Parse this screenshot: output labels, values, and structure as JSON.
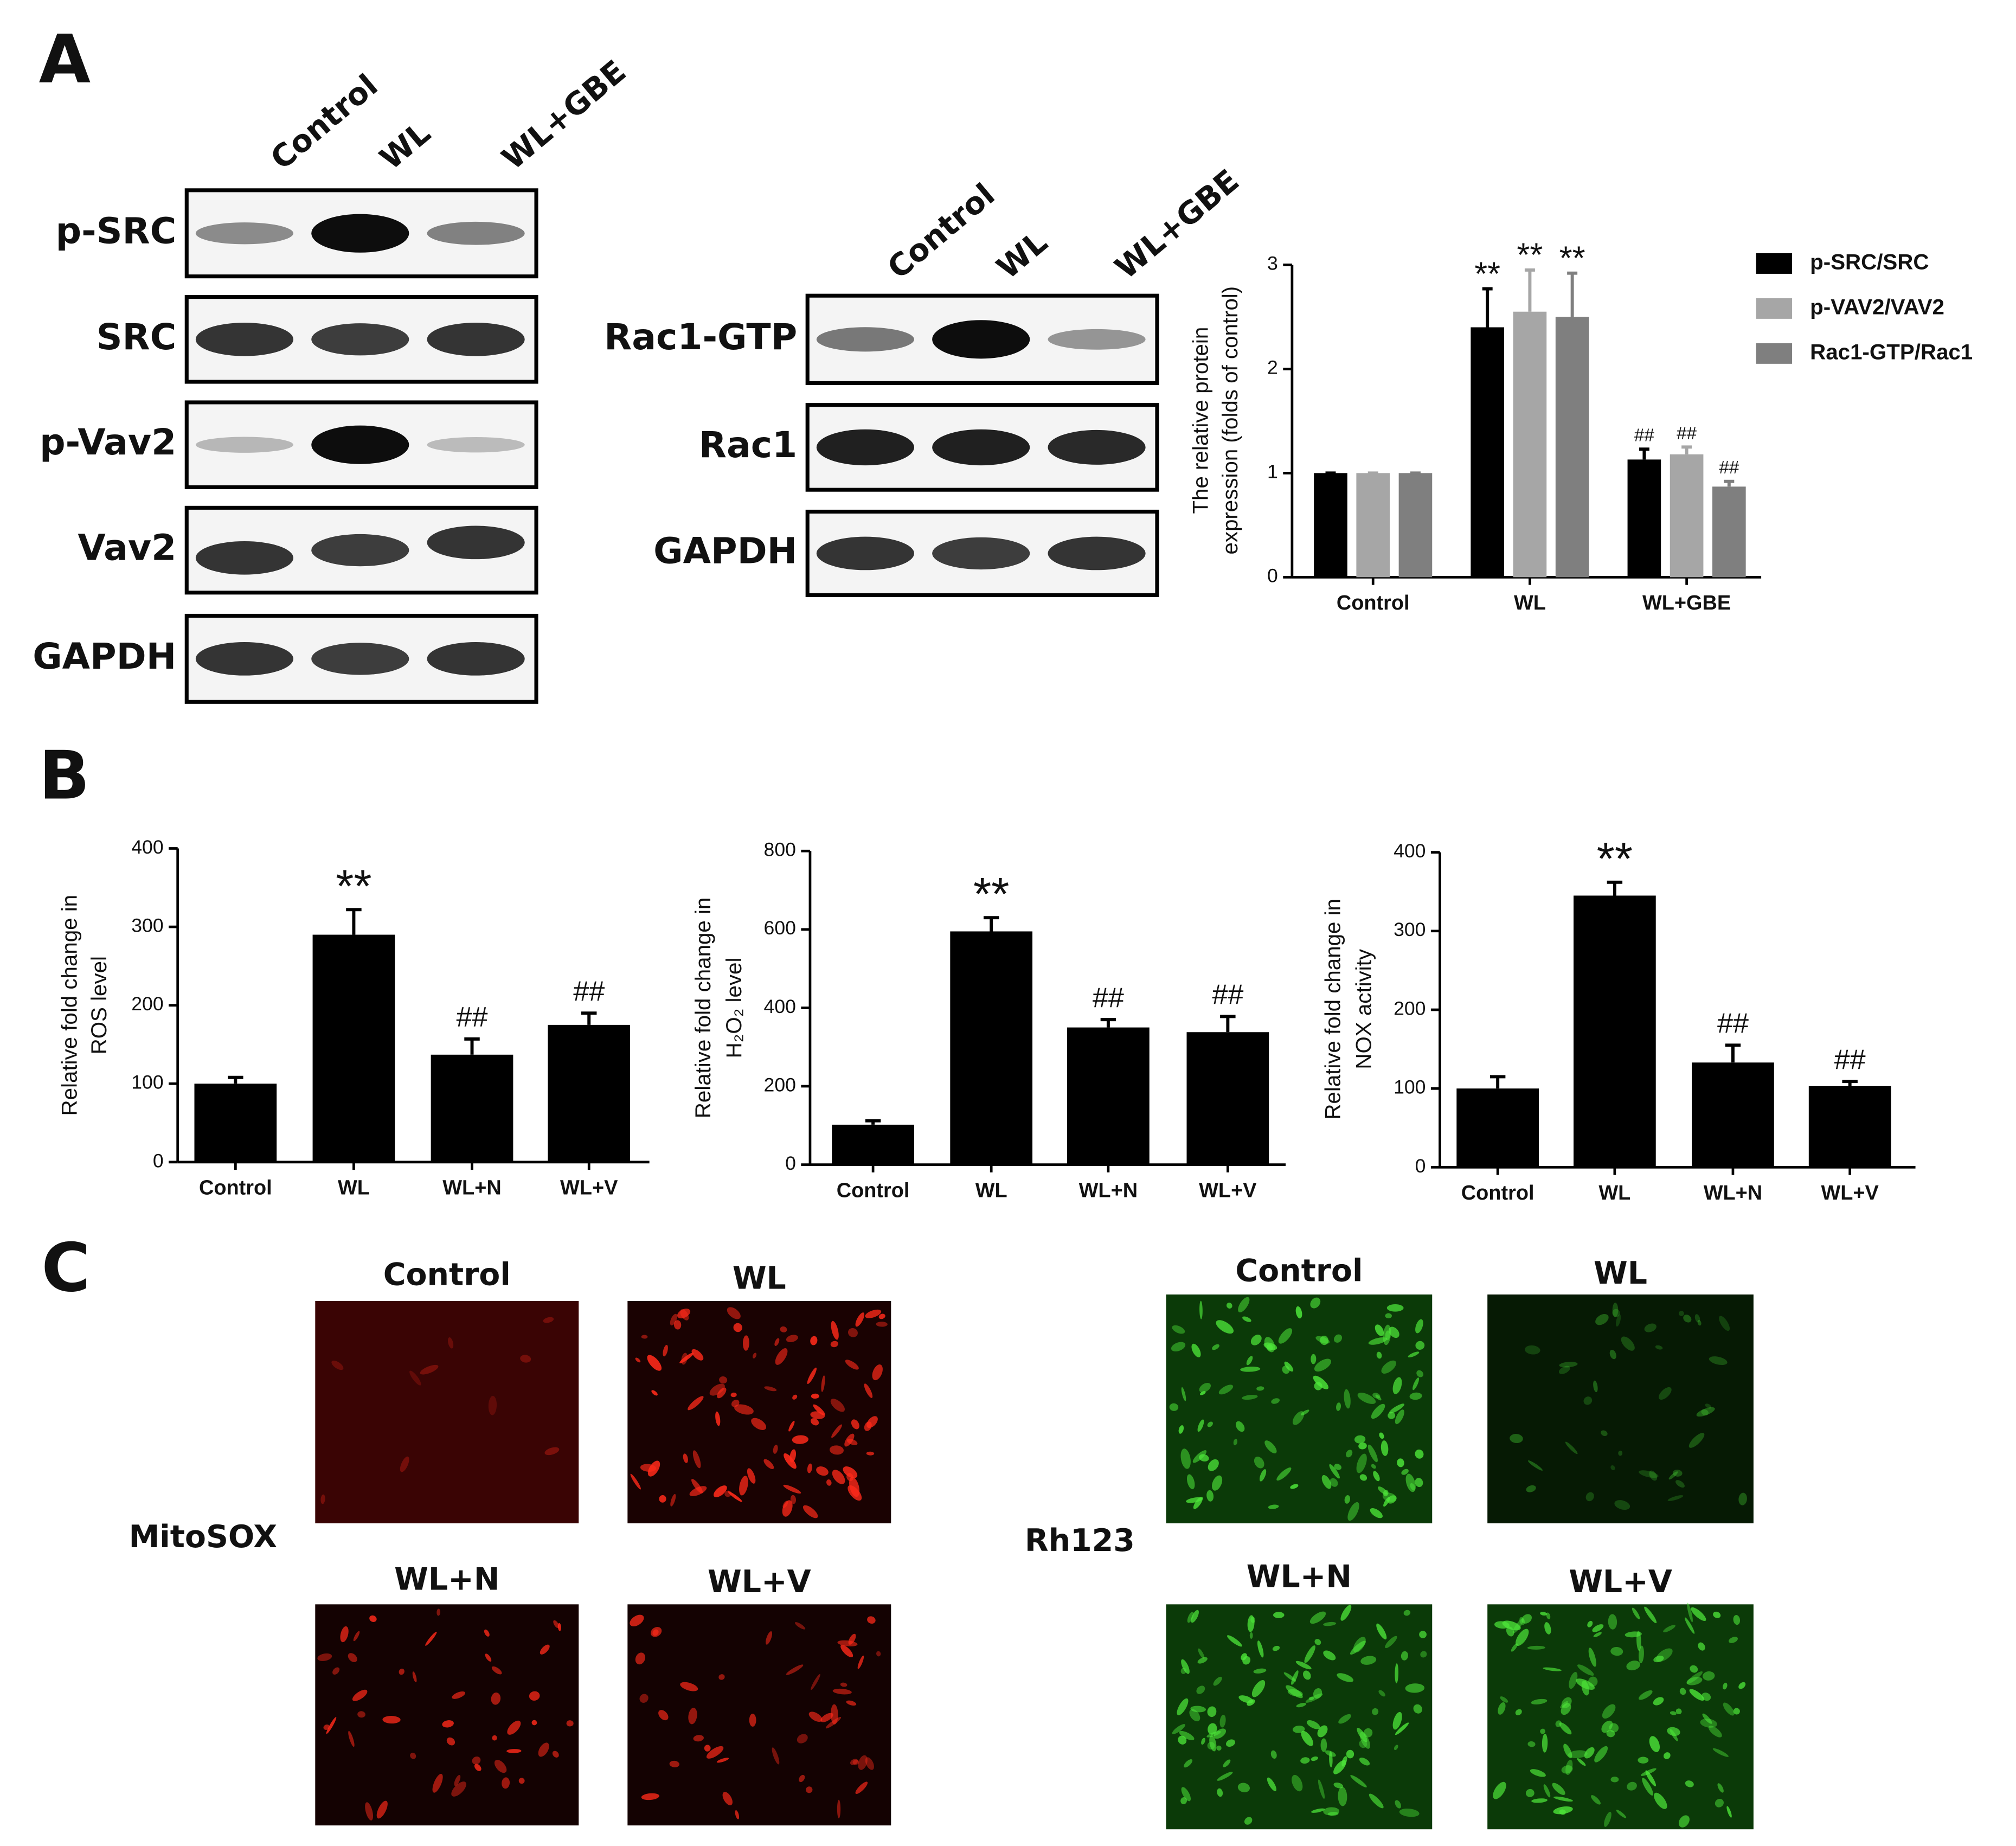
{
  "panel_labels": [
    "A",
    "B",
    "C"
  ],
  "blots": [
    {
      "lanes": [
        "Control",
        "WL",
        "WL+GBE"
      ],
      "rows": [
        "p-SRC",
        "SRC",
        "p-Vav2",
        "Vav2",
        "GAPDH"
      ]
    },
    {
      "lanes": [
        "Control",
        "WL",
        "WL+GBE"
      ],
      "rows": [
        "Rac1-GTP",
        "Rac1",
        "GAPDH"
      ]
    }
  ],
  "chart_data": [
    {
      "type": "bar",
      "categories": [
        "Control",
        "WL",
        "WL+GBE"
      ],
      "ylabel": [
        "The relative protein",
        "expression (folds of control)"
      ],
      "ylim": [
        0,
        3
      ],
      "yticks": [
        0,
        1,
        2,
        3
      ],
      "legend": "top-right",
      "series": [
        {
          "name": "p-SRC/SRC",
          "color": "#000000",
          "values": [
            1,
            2.4,
            1.13
          ],
          "errors": [
            0,
            0.37,
            0.1
          ],
          "markers": [
            null,
            "**",
            "##"
          ]
        },
        {
          "name": "p-VAV2/VAV2",
          "color": "#a6a6a6",
          "values": [
            1,
            2.55,
            1.18
          ],
          "errors": [
            0,
            0.4,
            0.07
          ],
          "markers": [
            null,
            "**",
            "##"
          ]
        },
        {
          "name": "Rac1-GTP/Rac1",
          "color": "#7f7f7f",
          "values": [
            1,
            2.5,
            0.87
          ],
          "errors": [
            0,
            0.42,
            0.05
          ],
          "markers": [
            null,
            "**",
            "##"
          ]
        }
      ]
    },
    {
      "type": "bar",
      "categories": [
        "Control",
        "WL",
        "WL+N",
        "WL+V"
      ],
      "ylabel": [
        "Relative fold change in",
        "ROS level"
      ],
      "color": "#000000",
      "ylim": [
        0,
        400
      ],
      "yticks": [
        0,
        100,
        200,
        300,
        400
      ],
      "values": [
        100,
        290,
        137,
        175
      ],
      "errors": [
        8,
        32,
        20,
        15
      ],
      "markers": [
        null,
        "**",
        "##",
        "##"
      ]
    },
    {
      "type": "bar",
      "categories": [
        "Control",
        "WL",
        "WL+N",
        "WL+V"
      ],
      "ylabel": [
        "Relative fold change in",
        "H₂O₂ level"
      ],
      "color": "#000000",
      "ylim": [
        0,
        800
      ],
      "yticks": [
        0,
        200,
        400,
        600,
        800
      ],
      "values": [
        102,
        595,
        350,
        338
      ],
      "errors": [
        10,
        35,
        20,
        40
      ],
      "markers": [
        null,
        "**",
        "##",
        "##"
      ]
    },
    {
      "type": "bar",
      "categories": [
        "Control",
        "WL",
        "WL+N",
        "WL+V"
      ],
      "ylabel": [
        "Relative fold change in",
        "NOX activity"
      ],
      "color": "#000000",
      "ylim": [
        0,
        400
      ],
      "yticks": [
        0,
        100,
        200,
        300,
        400
      ],
      "values": [
        100,
        345,
        133,
        103
      ],
      "errors": [
        15,
        17,
        22,
        6
      ],
      "markers": [
        null,
        "**",
        "##",
        "##"
      ]
    }
  ],
  "images": [
    {
      "label": "MitoSOX",
      "titles": [
        "Control",
        "WL",
        "WL+N",
        "WL+V"
      ]
    },
    {
      "label": "Rh123",
      "titles": [
        "Control",
        "WL",
        "WL+N",
        "WL+V"
      ]
    }
  ]
}
